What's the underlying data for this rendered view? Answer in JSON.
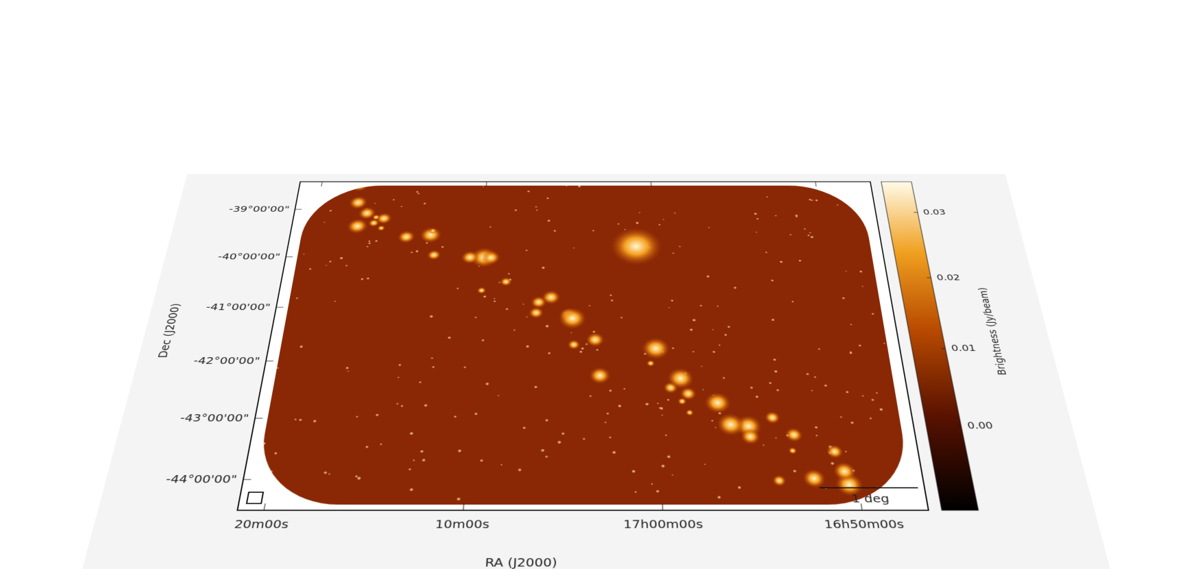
{
  "axes": {
    "x_label": "RA (J2000)",
    "y_label": "Dec (J2000)",
    "x_ticks": [
      "20m00s",
      "10m00s",
      "17h00m00s",
      "16h50m00s"
    ],
    "y_ticks": [
      "-39°00'00\"",
      "-40°00'00\"",
      "-41°00'00\"",
      "-42°00'00\"",
      "-43°00'00\"",
      "-44°00'00\""
    ]
  },
  "colorbar": {
    "label": "Brightness (Jy/beam)",
    "clim": [
      -0.01,
      0.035
    ],
    "ticks": [
      {
        "value": 0,
        "label": "0.00"
      },
      {
        "value": 0.01,
        "label": "0.01"
      },
      {
        "value": 0.02,
        "label": "0.02"
      },
      {
        "value": 0.03,
        "label": "0.03"
      }
    ]
  },
  "scale_bar": "1 deg"
}
